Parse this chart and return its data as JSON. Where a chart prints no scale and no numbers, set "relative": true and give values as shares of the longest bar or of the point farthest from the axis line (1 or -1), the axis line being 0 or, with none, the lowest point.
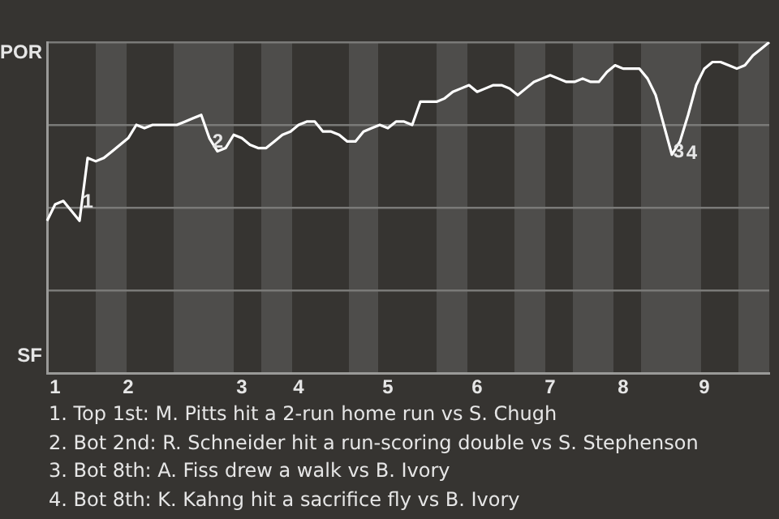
{
  "chart_data": {
    "type": "line",
    "relative": true,
    "categories": [
      null,
      "1",
      null,
      null,
      null,
      null,
      null,
      null,
      null,
      null,
      "2",
      null,
      null,
      null,
      null,
      null,
      null,
      null,
      null,
      null,
      null,
      null,
      null,
      null,
      "3",
      null,
      null,
      null,
      null,
      null,
      null,
      "4",
      null,
      null,
      null,
      null,
      null,
      null,
      null,
      null,
      null,
      null,
      "5",
      null,
      null,
      null,
      null,
      null,
      null,
      null,
      null,
      null,
      null,
      "6",
      null,
      null,
      null,
      null,
      null,
      null,
      null,
      null,
      "7",
      null,
      null,
      null,
      null,
      null,
      null,
      null,
      null,
      "8",
      null,
      null,
      null,
      null,
      null,
      null,
      null,
      null,
      null,
      "9",
      null,
      null,
      null,
      null,
      null,
      null,
      null,
      null
    ],
    "series": [
      {
        "color": "#ffffff",
        "values": [
          0.46,
          0.51,
          0.52,
          0.49,
          0.46,
          0.65,
          0.64,
          0.65,
          0.67,
          0.69,
          0.71,
          0.75,
          0.74,
          0.75,
          0.75,
          0.75,
          0.75,
          0.76,
          0.77,
          0.78,
          0.71,
          0.67,
          0.68,
          0.72,
          0.71,
          0.69,
          0.68,
          0.68,
          0.7,
          0.72,
          0.73,
          0.75,
          0.76,
          0.76,
          0.73,
          0.73,
          0.72,
          0.7,
          0.7,
          0.73,
          0.74,
          0.75,
          0.74,
          0.76,
          0.76,
          0.75,
          0.82,
          0.82,
          0.82,
          0.83,
          0.85,
          0.86,
          0.87,
          0.85,
          0.86,
          0.87,
          0.87,
          0.86,
          0.84,
          0.86,
          0.88,
          0.89,
          0.9,
          0.89,
          0.88,
          0.88,
          0.89,
          0.88,
          0.88,
          0.91,
          0.93,
          0.92,
          0.92,
          0.92,
          0.89,
          0.84,
          0.75,
          0.66,
          0.7,
          0.78,
          0.87,
          0.92,
          0.94,
          0.94,
          0.93,
          0.92,
          0.93,
          0.96,
          0.98,
          1.0
        ]
      }
    ],
    "grid": "y",
    "marker": "none",
    "annotations": [
      "POR",
      "SF",
      "1",
      "2",
      "3",
      "4",
      "1. Top 1st: M. Pitts hit a 2-run home run vs S. Chugh",
      "2. Bot 2nd: R. Schneider hit a run-scoring double vs S. Stephenson",
      "3. Bot 8th: A. Fiss drew a walk vs B. Ivory",
      "4. Bot 8th: K. Kahng hit a sacrifice fly vs B. Ivory"
    ]
  }
}
